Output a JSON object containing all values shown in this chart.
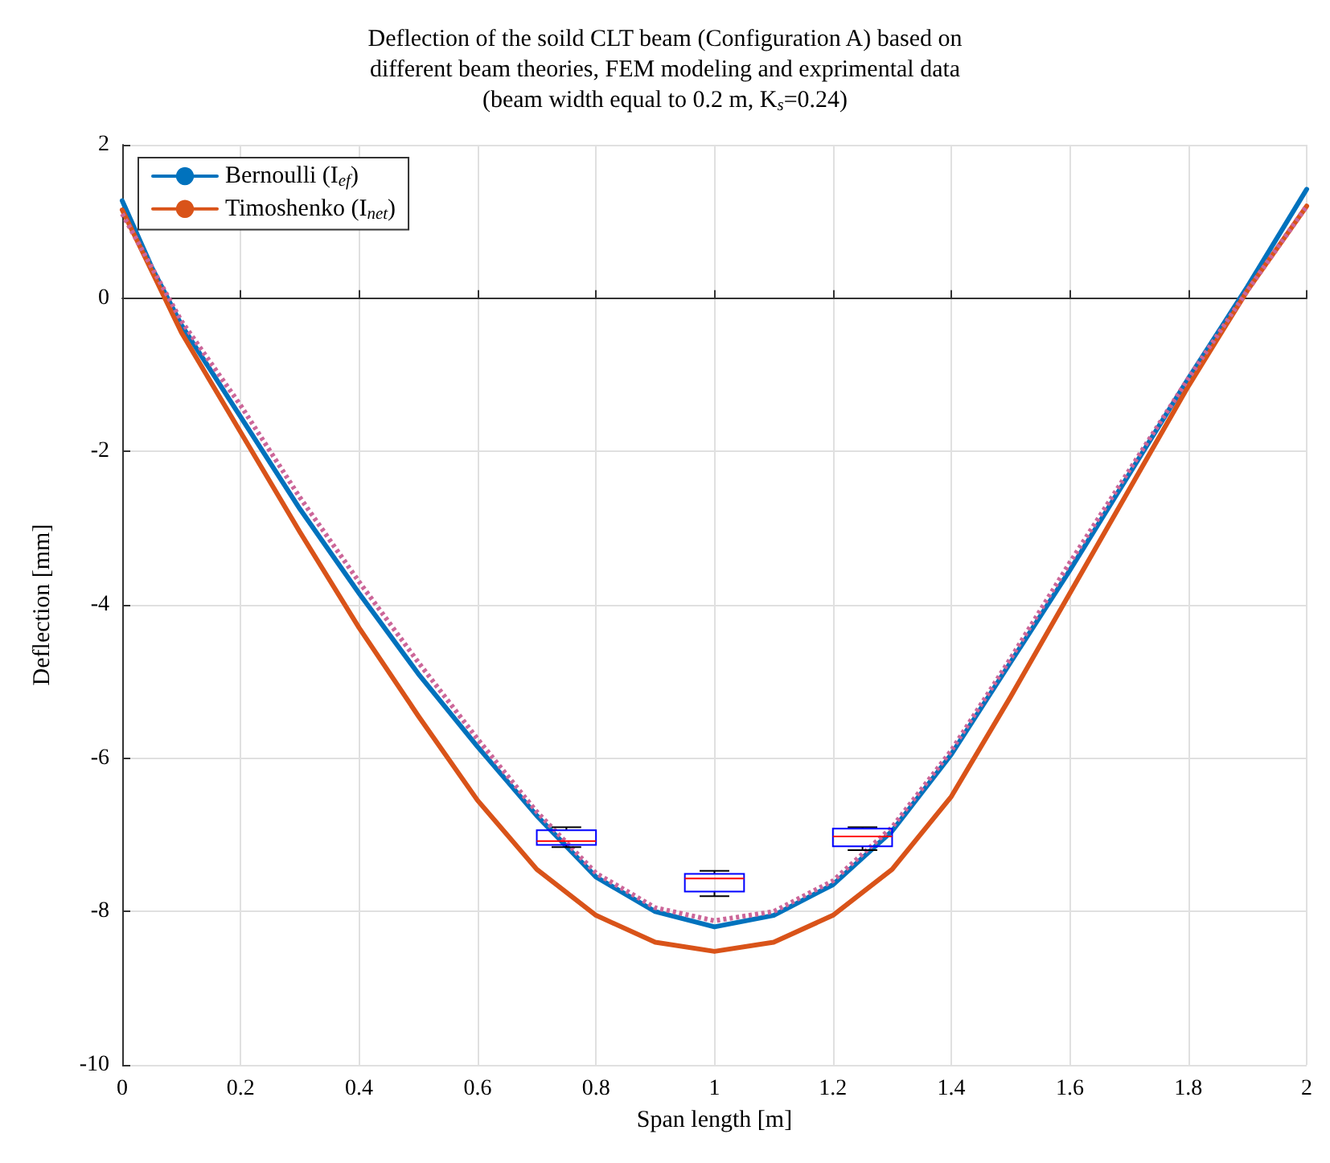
{
  "chart_data": {
    "type": "line",
    "title": "Deflection of the soild CLT beam (Configuration A) based on\ndifferent beam theories, FEM modeling and exprimental data\n(beam width equal to 0.2 m, K$_{s}$=0.24)",
    "xlabel": "Span length [m]",
    "ylabel": "Deflection [mm]",
    "xlim": [
      0,
      2
    ],
    "xticks": [
      0,
      0.2,
      0.4,
      0.6,
      0.8,
      1,
      1.2,
      1.4,
      1.6,
      1.8,
      2
    ],
    "ylim": [
      -10,
      2
    ],
    "yticks": [
      -10,
      -8,
      -6,
      -4,
      -2,
      0,
      2
    ],
    "grid": true,
    "legend": "top left",
    "marker": "none",
    "series": [
      {
        "name": "Bernoulli (I$_{ef}$)",
        "color": "#0072bd",
        "line_style": "solid",
        "x": [
          0,
          0.05,
          0.1,
          0.2,
          0.3,
          0.4,
          0.5,
          0.6,
          0.7,
          0.8,
          0.9,
          1,
          1.1,
          1.2,
          1.3,
          1.4,
          1.5,
          1.6,
          1.7,
          1.8,
          1.9,
          2
        ],
        "values": [
          1.27,
          0.4,
          -0.35,
          -1.55,
          -2.75,
          -3.85,
          -4.9,
          -5.85,
          -6.75,
          -7.55,
          -8.0,
          -8.2,
          -8.05,
          -7.65,
          -6.95,
          -5.95,
          -4.75,
          -3.55,
          -2.3,
          -1.05,
          0.15,
          1.42
        ]
      },
      {
        "name": "Timoshenko (I$_{net}$)",
        "color": "#d95319",
        "line_style": "solid",
        "x": [
          0,
          0.1,
          0.2,
          0.3,
          0.4,
          0.5,
          0.6,
          0.7,
          0.8,
          0.9,
          1,
          1.1,
          1.2,
          1.3,
          1.4,
          1.5,
          1.6,
          1.7,
          1.8,
          1.9,
          2
        ],
        "values": [
          1.15,
          -0.45,
          -1.75,
          -3.05,
          -4.3,
          -5.45,
          -6.55,
          -7.45,
          -8.05,
          -8.4,
          -8.52,
          -8.4,
          -8.05,
          -7.45,
          -6.5,
          -5.2,
          -3.85,
          -2.5,
          -1.15,
          0.1,
          1.2
        ]
      },
      {
        "color": "#cc6699",
        "line_style": "dotted",
        "x": [
          0,
          0.1,
          0.2,
          0.3,
          0.4,
          0.5,
          0.6,
          0.7,
          0.8,
          0.9,
          1,
          1.1,
          1.2,
          1.3,
          1.4,
          1.5,
          1.6,
          1.7,
          1.8,
          1.9,
          2
        ],
        "values": [
          1.1,
          -0.3,
          -1.4,
          -2.6,
          -3.7,
          -4.75,
          -5.75,
          -6.7,
          -7.5,
          -7.95,
          -8.12,
          -8.0,
          -7.6,
          -6.9,
          -5.9,
          -4.7,
          -3.45,
          -2.25,
          -1.05,
          0.1,
          1.2
        ]
      },
      {
        "type": "box",
        "color": "#0000ff",
        "x": [
          0.75,
          1,
          1.25
        ],
        "boxes": [
          {
            "low": -7.16,
            "q1": -7.13,
            "median": -7.08,
            "q3": -6.94,
            "high": -6.9
          },
          {
            "low": -7.8,
            "q1": -7.74,
            "median": -7.57,
            "q3": -7.51,
            "high": -7.47
          },
          {
            "low": -7.2,
            "q1": -7.15,
            "median": -7.02,
            "q3": -6.92,
            "high": -6.9
          }
        ]
      }
    ]
  }
}
